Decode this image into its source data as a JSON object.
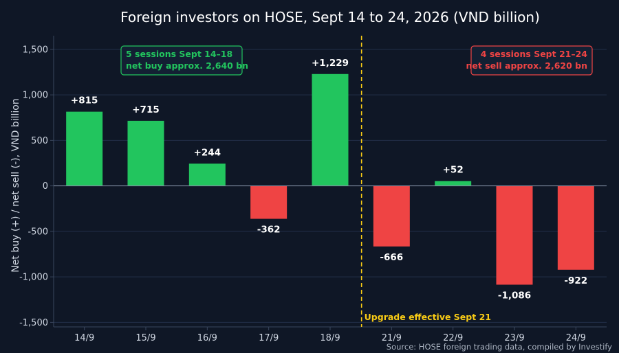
{
  "colors": {
    "background": "#0f1726",
    "positive": "#22c55e",
    "negative": "#ef4444",
    "marker": "#facc15",
    "box_fill": "#132033"
  },
  "chart_data": {
    "type": "bar",
    "title": "Foreign investors on HOSE, Sept 14 to 24, 2026 (VND billion)",
    "ylabel": "Net buy (+) / net sell (-), VND billion",
    "xlabel": "",
    "categories": [
      "14/9",
      "15/9",
      "16/9",
      "17/9",
      "18/9",
      "21/9",
      "22/9",
      "23/9",
      "24/9"
    ],
    "values": [
      815,
      715,
      244,
      -362,
      1229,
      -666,
      52,
      -1086,
      -922
    ],
    "data_labels": [
      "+815",
      "+715",
      "+244",
      "-362",
      "+1,229",
      "-666",
      "+52",
      "-1,086",
      "-922"
    ],
    "ylim": [
      -1550,
      1650
    ],
    "yticks": [
      -1500,
      -1000,
      -500,
      0,
      500,
      1000,
      1500
    ],
    "ytick_labels": [
      "-1,500",
      "-1,000",
      "-500",
      "0",
      "500",
      "1,000",
      "1,500"
    ],
    "grid": true,
    "vline": {
      "after_category": "18/9",
      "label": "Upgrade effective Sept 21",
      "style": "dashed"
    },
    "annotations": [
      {
        "lines": [
          "5 sessions Sept 14–18",
          "net buy approx. 2,640 bn"
        ],
        "placement": "top-left",
        "color": "#22c55e"
      },
      {
        "lines": [
          "4 sessions Sept 21–24",
          "net sell approx. 2,620 bn"
        ],
        "placement": "top-right",
        "color": "#ef4444"
      }
    ],
    "source": "Source: HOSE foreign trading data, compiled by Investify"
  }
}
